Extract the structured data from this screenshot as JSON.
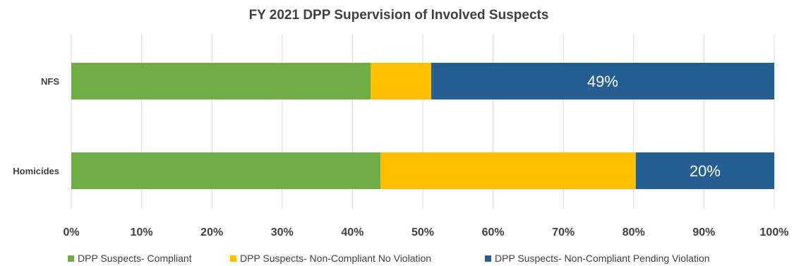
{
  "chart_data": {
    "type": "bar",
    "orientation": "horizontal",
    "stacked": "percent",
    "title": "FY 2021 DPP Supervision of Involved Suspects",
    "categories": [
      "NFS",
      "Homicides"
    ],
    "series": [
      {
        "name": "DPP Suspects- Compliant",
        "color": "#70AD47",
        "values": [
          0.426,
          0.44
        ]
      },
      {
        "name": "DPP Suspects- Non-Compliant No Violation",
        "color": "#FFC000",
        "values": [
          0.086,
          0.363
        ]
      },
      {
        "name": "DPP Suspects- Non-Compliant Pending Violation",
        "color": "#255E91",
        "values": [
          0.488,
          0.197
        ]
      }
    ],
    "data_labels": [
      {
        "series": 2,
        "category": 0,
        "text": "49%"
      },
      {
        "series": 2,
        "category": 1,
        "text": "20%"
      }
    ],
    "xlim": [
      0,
      1
    ],
    "x_ticks": [
      "0%",
      "10%",
      "20%",
      "30%",
      "40%",
      "50%",
      "60%",
      "70%",
      "80%",
      "90%",
      "100%"
    ],
    "grid": true,
    "legend": "bottom"
  }
}
